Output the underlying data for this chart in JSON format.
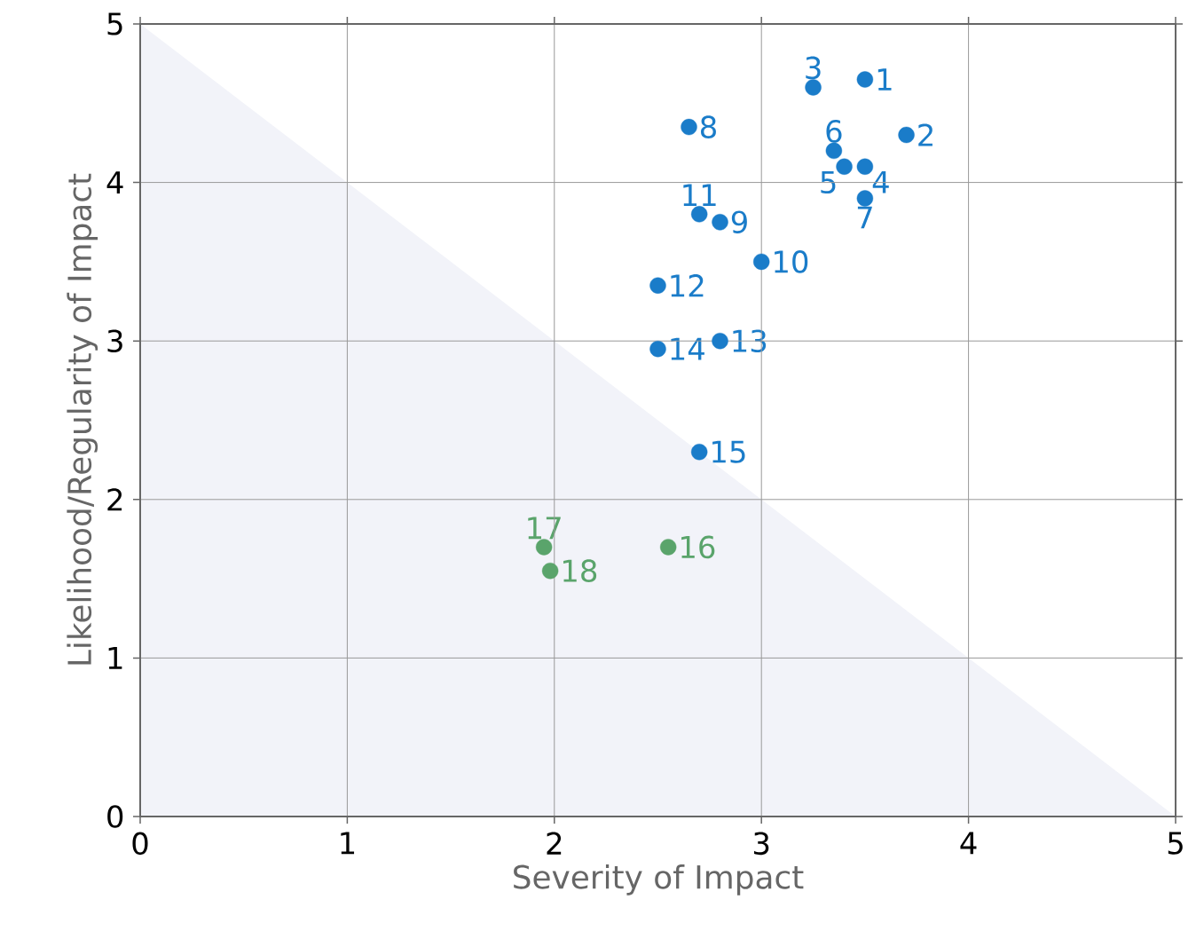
{
  "chart_data": {
    "type": "scatter",
    "xlabel": "Severity of Impact",
    "ylabel": "Likelihood/Regularity of Impact",
    "xlim": [
      0,
      5
    ],
    "ylim": [
      0,
      5
    ],
    "xticks": [
      0,
      1,
      2,
      3,
      4,
      5
    ],
    "yticks": [
      0,
      1,
      2,
      3,
      4,
      5
    ],
    "grid": true,
    "series": [
      {
        "type": "area",
        "marker": "none",
        "color": "#f2f3f9",
        "x": [
          0,
          5
        ],
        "values": [
          5,
          0
        ]
      },
      {
        "marker": "circle",
        "color": "#1a7cc9",
        "x": [
          3.5,
          3.7,
          3.25,
          3.5,
          3.4,
          3.35,
          3.5,
          2.65,
          2.8,
          3.0,
          2.7,
          2.5,
          2.8,
          2.5,
          2.7
        ],
        "values": [
          4.65,
          4.3,
          4.6,
          4.1,
          4.1,
          4.2,
          3.9,
          4.35,
          3.75,
          3.5,
          3.8,
          3.35,
          3.0,
          2.95,
          2.3
        ]
      },
      {
        "marker": "circle",
        "color": "#5aa46b",
        "x": [
          2.55,
          1.95,
          1.98
        ],
        "values": [
          1.7,
          1.7,
          1.55
        ]
      }
    ],
    "annotations": [
      {
        "text": "1",
        "x": 3.5,
        "y": 4.65
      },
      {
        "text": "2",
        "x": 3.7,
        "y": 4.3
      },
      {
        "text": "3",
        "x": 3.25,
        "y": 4.6
      },
      {
        "text": "4",
        "x": 3.5,
        "y": 4.1
      },
      {
        "text": "5",
        "x": 3.4,
        "y": 4.1
      },
      {
        "text": "6",
        "x": 3.35,
        "y": 4.2
      },
      {
        "text": "7",
        "x": 3.5,
        "y": 3.9
      },
      {
        "text": "8",
        "x": 2.65,
        "y": 4.35
      },
      {
        "text": "9",
        "x": 2.8,
        "y": 3.75
      },
      {
        "text": "10",
        "x": 3.0,
        "y": 3.5
      },
      {
        "text": "11",
        "x": 2.7,
        "y": 3.8
      },
      {
        "text": "12",
        "x": 2.5,
        "y": 3.35
      },
      {
        "text": "13",
        "x": 2.8,
        "y": 3.0
      },
      {
        "text": "14",
        "x": 2.5,
        "y": 2.95
      },
      {
        "text": "15",
        "x": 2.7,
        "y": 2.3
      },
      {
        "text": "16",
        "x": 2.55,
        "y": 1.7
      },
      {
        "text": "17",
        "x": 1.95,
        "y": 1.7
      },
      {
        "text": "18",
        "x": 1.98,
        "y": 1.55
      }
    ]
  }
}
